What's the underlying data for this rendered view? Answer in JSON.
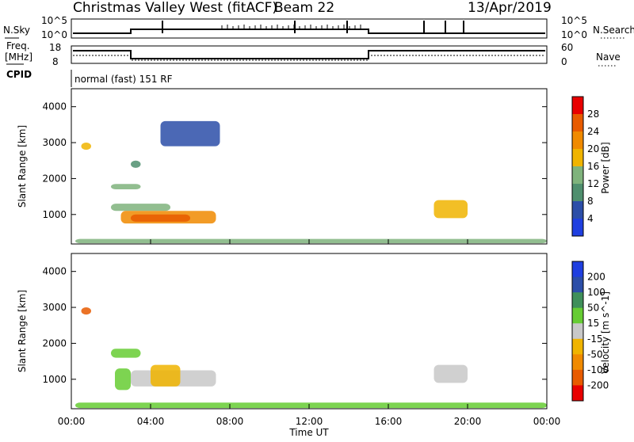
{
  "header": {
    "station_title": "Christmas Valley West (fitACF)",
    "beam": "Beam 22",
    "date": "13/Apr/2019"
  },
  "status_panels": {
    "nsky_label": "N.Sky",
    "nsky_ticks": [
      "10^5",
      "10^0"
    ],
    "nsearch_label": "N.Search",
    "nsearch_ticks": [
      "10^5",
      "10^0"
    ],
    "freq_label_1": "Freq.",
    "freq_label_2": "[MHz]",
    "freq_ticks": [
      "18",
      "8"
    ],
    "nave_label": "Nave",
    "nave_ticks": [
      "60",
      "0"
    ],
    "cpid_label": "CPID",
    "cpid_text": "normal (fast) 151 RF"
  },
  "chart_data": [
    {
      "type": "heatmap",
      "quantity": "Power",
      "ylabel": "Slant Range [km]",
      "colorbar_label": "Power [dB]",
      "colorbar_ticks": [
        "4",
        "8",
        "12",
        "16",
        "20",
        "24",
        "28"
      ],
      "colors": [
        "#1f3fe0",
        "#2c4ea8",
        "#4f8f6e",
        "#7fb37c",
        "#f0b400",
        "#f08a00",
        "#e85b00",
        "#e80000"
      ],
      "ylim": [
        180,
        4500
      ],
      "yticks": [
        1000,
        2000,
        3000,
        4000
      ],
      "xlim": [
        0,
        24
      ],
      "regions": [
        {
          "t0": 0.5,
          "t1": 1.0,
          "r0": 2800,
          "r1": 3000,
          "level": 4
        },
        {
          "t0": 2.0,
          "t1": 5.0,
          "r0": 1100,
          "r1": 1300,
          "level": 3
        },
        {
          "t0": 2.5,
          "t1": 7.3,
          "r0": 750,
          "r1": 1100,
          "level": 5
        },
        {
          "t0": 3.0,
          "t1": 6.0,
          "r0": 800,
          "r1": 1000,
          "level": 6
        },
        {
          "t0": 2.0,
          "t1": 3.5,
          "r0": 1700,
          "r1": 1850,
          "level": 3
        },
        {
          "t0": 3.0,
          "t1": 3.5,
          "r0": 2300,
          "r1": 2500,
          "level": 2
        },
        {
          "t0": 4.5,
          "t1": 7.5,
          "r0": 2900,
          "r1": 3600,
          "level": 1
        },
        {
          "t0": 18.3,
          "t1": 20.0,
          "r0": 900,
          "r1": 1400,
          "level": 4
        },
        {
          "t0": 0.2,
          "t1": 24.0,
          "r0": 200,
          "r1": 320,
          "level": 3
        }
      ]
    },
    {
      "type": "heatmap",
      "quantity": "Velocity",
      "ylabel": "Slant Range [km]",
      "xlabel": "Time UT",
      "colorbar_label": "Velocity [m s^-1]",
      "colorbar_ticks": [
        "200",
        "100",
        "50",
        "15",
        "-15",
        "-50",
        "-100",
        "-200"
      ],
      "colors": [
        "#1f3fe0",
        "#2c4ea8",
        "#3f8f5a",
        "#66cc33",
        "#c8c8c8",
        "#f0b400",
        "#f08a00",
        "#e85b00",
        "#e80000"
      ],
      "ylim": [
        180,
        4500
      ],
      "yticks": [
        1000,
        2000,
        3000,
        4000
      ],
      "xlim": [
        0,
        24
      ],
      "xticks": [
        "00:00",
        "04:00",
        "08:00",
        "12:00",
        "16:00",
        "20:00",
        "00:00"
      ],
      "regions": [
        {
          "t0": 0.5,
          "t1": 1.0,
          "r0": 2800,
          "r1": 3000,
          "level": 7
        },
        {
          "t0": 2.0,
          "t1": 3.5,
          "r0": 1600,
          "r1": 1850,
          "level": 3
        },
        {
          "t0": 2.2,
          "t1": 3.0,
          "r0": 700,
          "r1": 1300,
          "level": 3
        },
        {
          "t0": 3.0,
          "t1": 7.3,
          "r0": 800,
          "r1": 1250,
          "level": 4
        },
        {
          "t0": 4.0,
          "t1": 5.5,
          "r0": 800,
          "r1": 1400,
          "level": 5
        },
        {
          "t0": 18.3,
          "t1": 20.0,
          "r0": 900,
          "r1": 1400,
          "level": 4
        },
        {
          "t0": 0.2,
          "t1": 24.0,
          "r0": 200,
          "r1": 350,
          "level": 3
        }
      ]
    }
  ]
}
